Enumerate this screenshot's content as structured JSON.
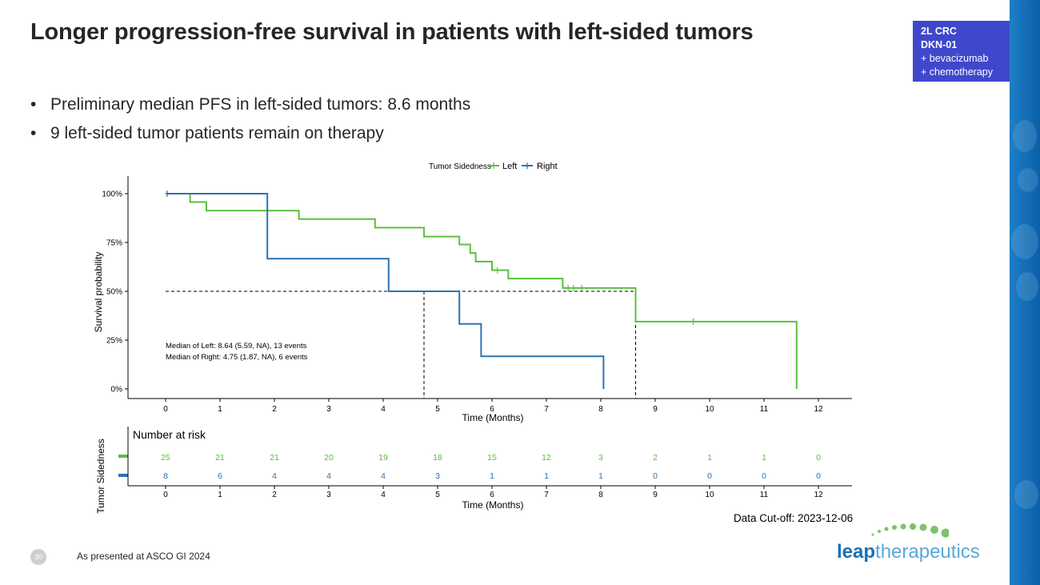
{
  "slide": {
    "title": "Longer progression-free survival in patients with left-sided tumors",
    "tag_lines": [
      "2L CRC",
      "DKN-01",
      "+ bevacizumab",
      "+ chemotherapy"
    ],
    "bullets": [
      "Preliminary median PFS in left-sided tumors: 8.6 months",
      "9 left-sided tumor patients remain on therapy"
    ],
    "footer": "As presented at ASCO GI 2024",
    "page_number": "30",
    "data_cutoff": "Data Cut-off: 2023-12-06",
    "logo_bold": "leap",
    "logo_light": "therapeutics",
    "colors": {
      "left": "#5cbf3e",
      "right": "#2e72b0",
      "tag_bg": "#3f48cc"
    }
  },
  "chart_data": {
    "type": "line",
    "subtype": "kaplan-meier step",
    "legend_title": "Tumor Sidedness",
    "legend": [
      "Left",
      "Right"
    ],
    "xlabel": "Time (Months)",
    "ylabel": "Survival probability",
    "xlim": [
      0,
      12
    ],
    "ylim": [
      0,
      1
    ],
    "x_ticks": [
      0,
      1,
      2,
      3,
      4,
      5,
      6,
      7,
      8,
      9,
      10,
      11,
      12
    ],
    "y_ticks": [
      0,
      0.25,
      0.5,
      0.75,
      1.0
    ],
    "y_tick_labels": [
      "0%",
      "25%",
      "50%",
      "75%",
      "100%"
    ],
    "series": [
      {
        "name": "Left",
        "color": "#5cbf3e",
        "steps": [
          [
            0,
            1.0
          ],
          [
            0.45,
            0.957
          ],
          [
            0.75,
            0.913
          ],
          [
            2.45,
            0.87
          ],
          [
            3.85,
            0.826
          ],
          [
            4.75,
            0.78
          ],
          [
            5.4,
            0.74
          ],
          [
            5.6,
            0.696
          ],
          [
            5.7,
            0.652
          ],
          [
            6.0,
            0.608
          ],
          [
            6.3,
            0.565
          ],
          [
            7.3,
            0.517
          ],
          [
            8.64,
            0.345
          ],
          [
            11.6,
            0.0
          ]
        ],
        "end": 11.6,
        "censor": [
          [
            6.1,
            0.608
          ],
          [
            7.4,
            0.517
          ],
          [
            7.5,
            0.517
          ],
          [
            7.65,
            0.517
          ],
          [
            9.7,
            0.345
          ]
        ]
      },
      {
        "name": "Right",
        "color": "#2e72b0",
        "steps": [
          [
            0,
            1.0
          ],
          [
            1.87,
            0.667
          ],
          [
            4.1,
            0.5
          ],
          [
            5.4,
            0.333
          ],
          [
            5.8,
            0.167
          ],
          [
            8.05,
            0.0
          ]
        ],
        "end": 8.05,
        "censor": [
          [
            0.03,
            1.0
          ]
        ]
      }
    ],
    "median_line": {
      "y": 0.5,
      "x_from": 0,
      "medians": [
        4.75,
        8.64
      ]
    },
    "annotations": [
      "Median of Left: 8.64 (5.59, NA), 13 events",
      "Median of Right: 4.75 (1.87, NA), 6 events"
    ],
    "risk_table": {
      "title": "Number at risk",
      "ylabel": "Tumor Sidedness",
      "xlabel": "Time (Months)",
      "times": [
        0,
        1,
        2,
        3,
        4,
        5,
        6,
        7,
        8,
        9,
        10,
        11,
        12
      ],
      "left": [
        25,
        21,
        21,
        20,
        19,
        18,
        15,
        12,
        3,
        2,
        1,
        1,
        0
      ],
      "right": [
        8,
        6,
        4,
        4,
        4,
        3,
        1,
        1,
        1,
        0,
        0,
        0,
        0
      ]
    }
  }
}
